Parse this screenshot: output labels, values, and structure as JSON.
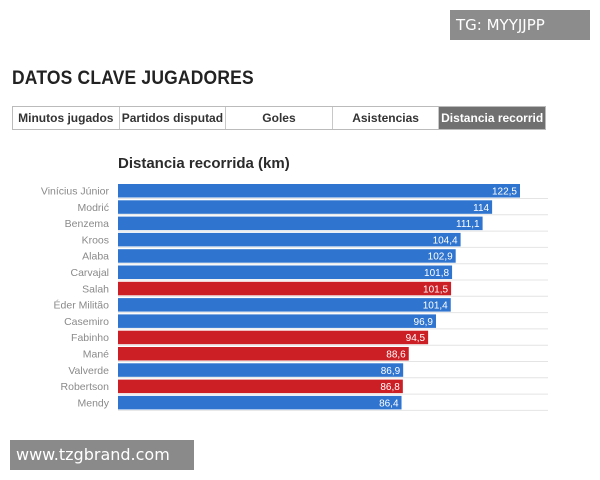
{
  "watermarks": {
    "top": "TG: MYYJJPP",
    "bottom": "www.tzgbrand.com"
  },
  "header": {
    "title": "DATOS CLAVE JUGADORES"
  },
  "tabs": [
    {
      "label": "Minutos jugados",
      "active": false
    },
    {
      "label": "Partidos disputad",
      "active": false
    },
    {
      "label": "Goles",
      "active": false
    },
    {
      "label": "Asistencias",
      "active": false
    },
    {
      "label": "Distancia recorrid",
      "active": true
    }
  ],
  "colors": {
    "blue": "#2f74cf",
    "red": "#cc1f25"
  },
  "chart_data": {
    "type": "bar",
    "orientation": "horizontal",
    "title": "Distancia recorrida (km)",
    "xlim": [
      0,
      122.5
    ],
    "categories": [
      "Vinícius Júnior",
      "Modrić",
      "Benzema",
      "Kroos",
      "Alaba",
      "Carvajal",
      "Salah",
      "Éder Militão",
      "Casemiro",
      "Fabinho",
      "Mané",
      "Valverde",
      "Robertson",
      "Mendy"
    ],
    "values": [
      122.5,
      114,
      111.1,
      104.4,
      102.9,
      101.8,
      101.5,
      101.4,
      96.9,
      94.5,
      88.6,
      86.9,
      86.8,
      86.4
    ],
    "value_labels": [
      "122,5",
      "114",
      "111,1",
      "104,4",
      "102,9",
      "101,8",
      "101,5",
      "101,4",
      "96,9",
      "94,5",
      "88,6",
      "86,9",
      "86,8",
      "86,4"
    ],
    "teams": [
      "blue",
      "blue",
      "blue",
      "blue",
      "blue",
      "blue",
      "red",
      "blue",
      "blue",
      "red",
      "red",
      "blue",
      "red",
      "blue"
    ]
  }
}
